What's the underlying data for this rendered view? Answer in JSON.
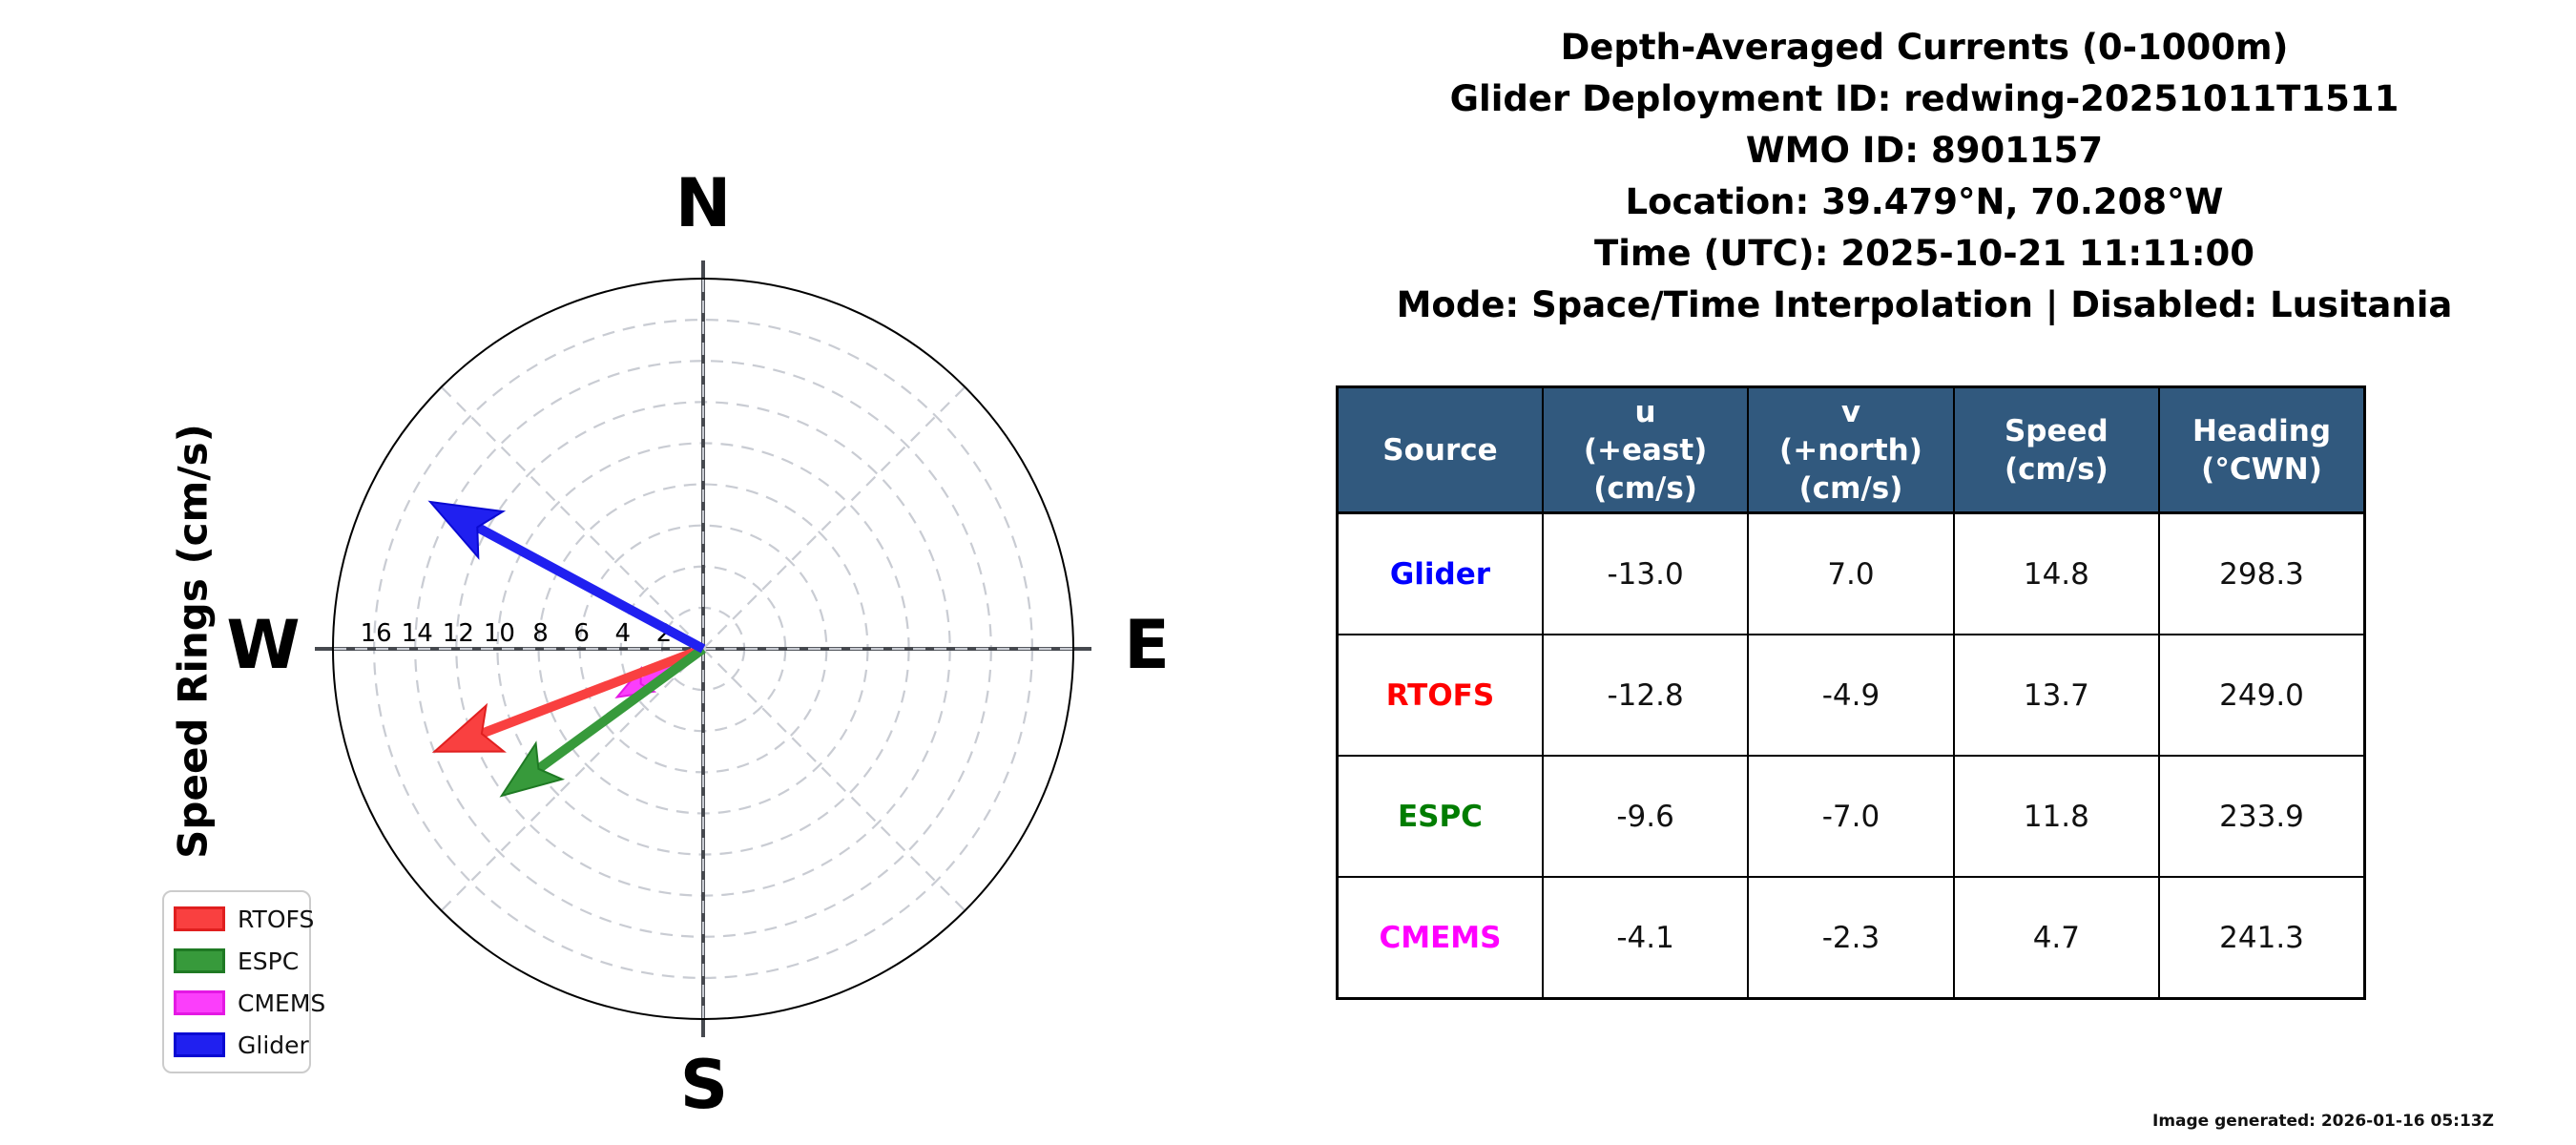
{
  "title_lines": [
    "Depth-Averaged Currents (0-1000m)",
    "Glider Deployment ID: redwing-20251011T1511",
    "WMO ID: 8901157",
    "Location: 39.479°N, 70.208°W",
    "Time (UTC): 2025-10-21 11:11:00",
    "Mode: Space/Time Interpolation | Disabled: Lusitania"
  ],
  "footer_note": "Image generated: 2026-01-16 05:13Z",
  "chart_data": {
    "type": "polar-vector",
    "axis_label": "Speed Rings (cm/s)",
    "compass": {
      "north": "N",
      "east": "E",
      "south": "S",
      "west": "W"
    },
    "ring_labels": [
      16,
      14,
      12,
      10,
      8,
      6,
      4,
      2
    ],
    "ring_step_cm_s": 2,
    "outer_ring_cm_s": 18,
    "radial_guides_deg": [
      0,
      45,
      90,
      135,
      180,
      225,
      270,
      315
    ],
    "grid_color": "#c9ccd3",
    "axis_color": "#46494f",
    "series": [
      {
        "name": "Glider",
        "u": -13.0,
        "v": 7.0,
        "speed": 14.8,
        "heading_cwn": 298.3,
        "color": "#2020f0",
        "edge": "#0a0ad2"
      },
      {
        "name": "RTOFS",
        "u": -12.8,
        "v": -4.9,
        "speed": 13.7,
        "heading_cwn": 249.0,
        "color": "#f94040",
        "edge": "#e01f1f"
      },
      {
        "name": "ESPC",
        "u": -9.6,
        "v": -7.0,
        "speed": 11.8,
        "heading_cwn": 233.9,
        "color": "#379a3b",
        "edge": "#1f7a24"
      },
      {
        "name": "CMEMS",
        "u": -4.1,
        "v": -2.3,
        "speed": 4.7,
        "heading_cwn": 241.3,
        "color": "#fb3efb",
        "edge": "#e418e4"
      }
    ],
    "draw_order": [
      "CMEMS",
      "RTOFS",
      "ESPC",
      "Glider"
    ],
    "legend_order": [
      "RTOFS",
      "ESPC",
      "CMEMS",
      "Glider"
    ]
  },
  "table": {
    "header_bg": "#31597e",
    "headers": [
      "Source",
      "u\n(+east)\n(cm/s)",
      "v\n(+north)\n(cm/s)",
      "Speed\n(cm/s)",
      "Heading\n(°CWN)"
    ],
    "rows": [
      {
        "source": "Glider",
        "color": "#0000ff",
        "u": "-13.0",
        "v": "7.0",
        "speed": "14.8",
        "heading": "298.3"
      },
      {
        "source": "RTOFS",
        "color": "#ff0000",
        "u": "-12.8",
        "v": "-4.9",
        "speed": "13.7",
        "heading": "249.0"
      },
      {
        "source": "ESPC",
        "color": "#007d00",
        "u": "-9.6",
        "v": "-7.0",
        "speed": "11.8",
        "heading": "233.9"
      },
      {
        "source": "CMEMS",
        "color": "#ff00ff",
        "u": "-4.1",
        "v": "-2.3",
        "speed": "4.7",
        "heading": "241.3"
      }
    ]
  }
}
